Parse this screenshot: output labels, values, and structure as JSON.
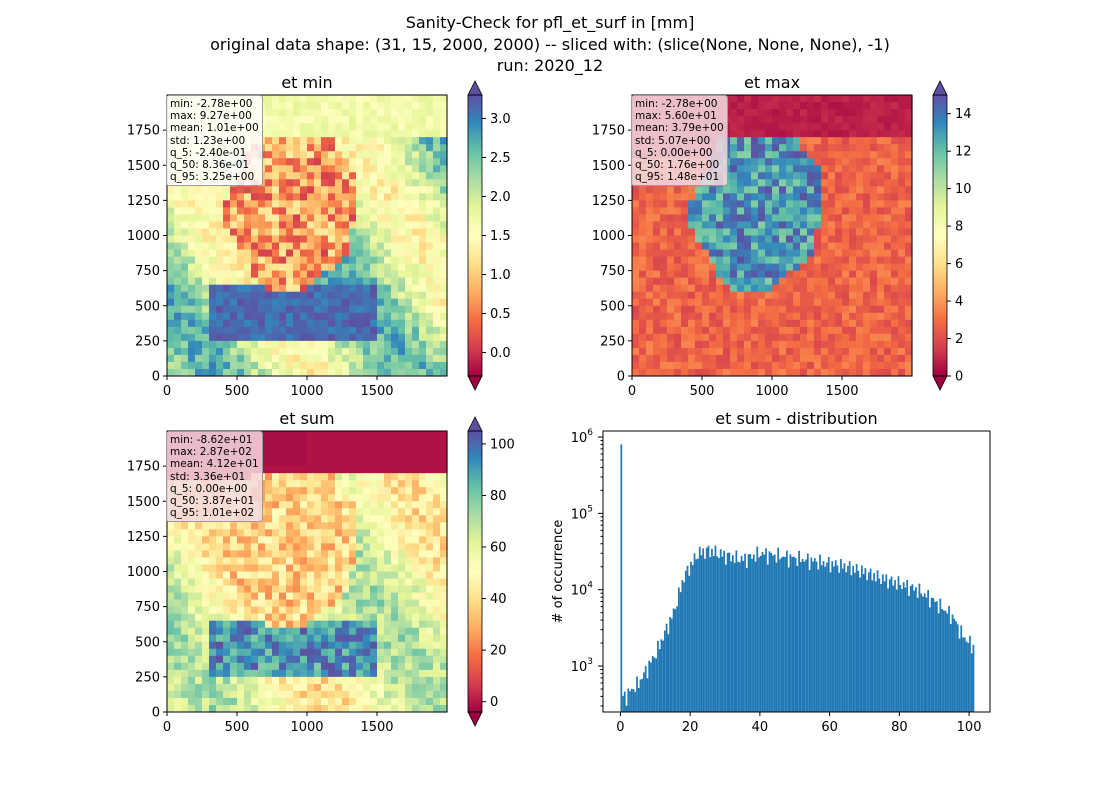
{
  "figure": {
    "title_line1": "Sanity-Check for pfl_et_surf in [mm]",
    "title_line2": "original data shape: (31, 15, 2000, 2000) -- sliced with: (slice(None, None, None), -1)",
    "title_line3": "run: 2020_12"
  },
  "chart_data": [
    {
      "type": "heatmap",
      "title": "et min",
      "xlim": [
        0,
        2000
      ],
      "ylim": [
        0,
        2000
      ],
      "xticks": [
        0,
        500,
        1000,
        1500
      ],
      "yticks": [
        0,
        250,
        500,
        750,
        1000,
        1250,
        1500,
        1750
      ],
      "colormap": "Spectral",
      "colorbar": {
        "range": [
          -0.3,
          3.3
        ],
        "ticks": [
          "0.0",
          "0.5",
          "1.0",
          "1.5",
          "2.0",
          "2.5",
          "3.0"
        ],
        "extend": "both"
      },
      "stats": [
        "min: -2.78e+00",
        "max: 9.27e+00",
        "mean: 1.01e+00",
        "std: 1.23e+00",
        "q_5: -2.40e-01",
        "q_50: 8.36e-01",
        "q_95: 3.25e+00"
      ]
    },
    {
      "type": "heatmap",
      "title": "et max",
      "xlim": [
        0,
        2000
      ],
      "ylim": [
        0,
        2000
      ],
      "xticks": [
        0,
        500,
        1000,
        1500
      ],
      "yticks": [
        0,
        250,
        500,
        750,
        1000,
        1250,
        1500,
        1750
      ],
      "colormap": "Spectral",
      "colorbar": {
        "range": [
          0,
          15
        ],
        "ticks": [
          "0",
          "2",
          "4",
          "6",
          "8",
          "10",
          "12",
          "14"
        ],
        "extend": "both"
      },
      "stats": [
        "min: -2.78e+00",
        "max: 5.60e+01",
        "mean: 3.79e+00",
        "std: 5.07e+00",
        "q_5: 0.00e+00",
        "q_50: 1.76e+00",
        "q_95: 1.48e+01"
      ]
    },
    {
      "type": "heatmap",
      "title": "et sum",
      "xlim": [
        0,
        2000
      ],
      "ylim": [
        0,
        2000
      ],
      "xticks": [
        0,
        500,
        1000,
        1500
      ],
      "yticks": [
        0,
        250,
        500,
        750,
        1000,
        1250,
        1500,
        1750
      ],
      "colormap": "Spectral",
      "colorbar": {
        "range": [
          -4,
          105
        ],
        "ticks": [
          "0",
          "20",
          "40",
          "60",
          "80",
          "100"
        ],
        "extend": "both"
      },
      "stats": [
        "min: -8.62e+01",
        "max: 2.87e+02",
        "mean: 4.12e+01",
        "std: 3.36e+01",
        "q_5: 0.00e+00",
        "q_50: 3.87e+01",
        "q_95: 1.01e+02"
      ]
    },
    {
      "type": "bar",
      "title": "et sum - distribution",
      "ylabel": "# of occurrence",
      "xlabel": "",
      "yscale": "log",
      "xlim": [
        -5,
        106
      ],
      "ylim": [
        250,
        1200000
      ],
      "xticks": [
        0,
        20,
        40,
        60,
        80,
        100
      ],
      "ytick_labels": [
        "10^3",
        "10^4",
        "10^5",
        "10^6"
      ],
      "color": "#1f77b4",
      "bins": {
        "x": [
          0,
          1,
          5,
          10,
          15,
          18,
          22,
          25,
          30,
          35,
          40,
          45,
          50,
          55,
          60,
          65,
          70,
          75,
          80,
          85,
          90,
          95,
          98,
          100,
          101
        ],
        "counts": [
          800000,
          400,
          600,
          1500,
          5000,
          15000,
          30000,
          33000,
          28000,
          25000,
          30000,
          28000,
          26000,
          24000,
          22000,
          20000,
          17000,
          14000,
          12000,
          10000,
          7000,
          4500,
          2500,
          2000,
          1800
        ]
      }
    }
  ]
}
